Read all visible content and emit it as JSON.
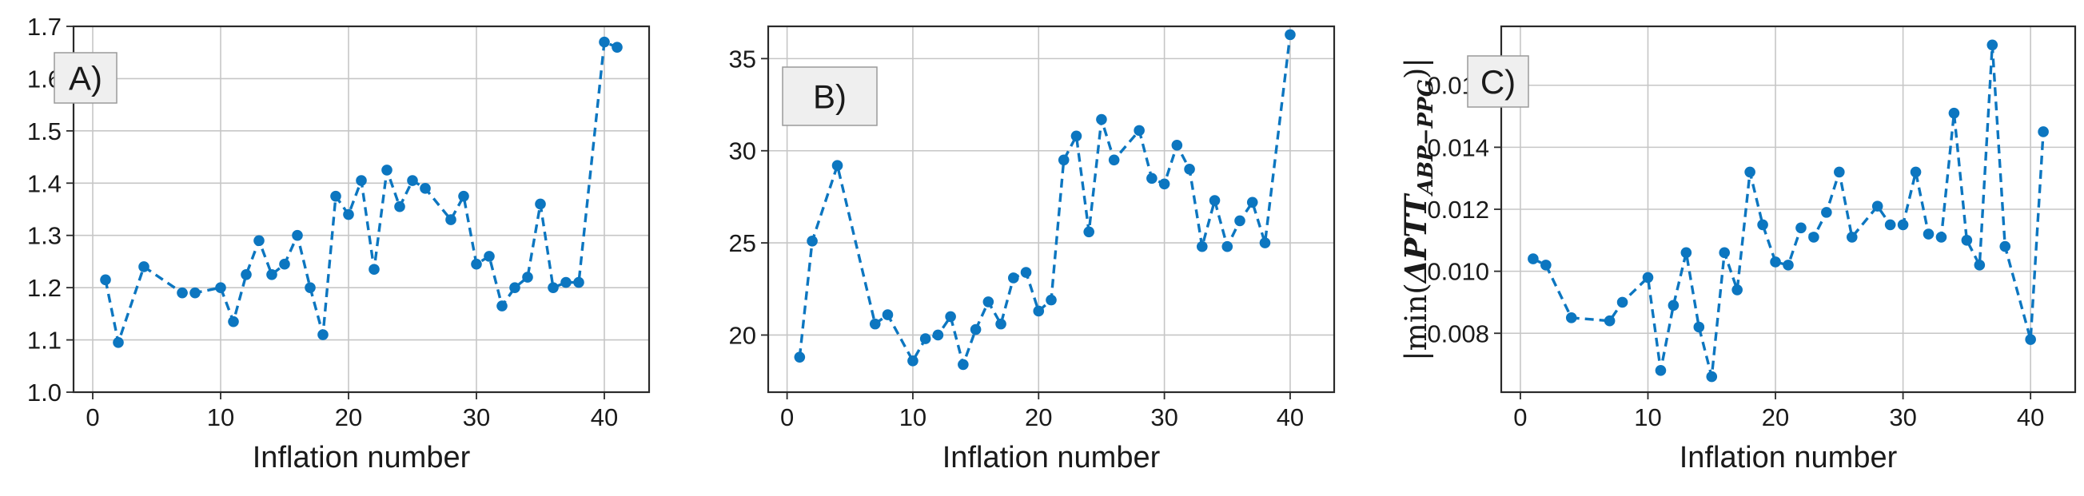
{
  "figure": {
    "background": "#ffffff",
    "accent_color": "#0c76c0",
    "grid_color": "#c6c6c6",
    "spine_color": "#2a2a2a",
    "label_box_fill": "#efefef",
    "label_box_border": "#9a9a9a",
    "xlabel": "Inflation number",
    "x_tick_labels": [
      "0",
      "10",
      "20",
      "30",
      "40"
    ]
  },
  "chart_data": [
    {
      "type": "line",
      "panel_label": "A)",
      "xlabel": "Inflation number",
      "ylabel": "",
      "line_style": "dashed",
      "marker": "circle",
      "grid": true,
      "legend": "none",
      "x": [
        1,
        2,
        4,
        7,
        8,
        10,
        11,
        12,
        13,
        14,
        15,
        16,
        17,
        18,
        19,
        20,
        21,
        22,
        23,
        24,
        25,
        26,
        28,
        29,
        30,
        31,
        32,
        33,
        34,
        35,
        36,
        37,
        38,
        40,
        41
      ],
      "values": [
        1.215,
        1.095,
        1.24,
        1.19,
        1.19,
        1.2,
        1.135,
        1.225,
        1.29,
        1.225,
        1.245,
        1.3,
        1.2,
        1.11,
        1.375,
        1.34,
        1.405,
        1.235,
        1.425,
        1.355,
        1.405,
        1.39,
        1.33,
        1.375,
        1.245,
        1.26,
        1.165,
        1.2,
        1.22,
        1.36,
        1.2,
        1.21,
        1.21,
        1.67,
        1.66
      ],
      "xlim": [
        -1.5,
        43.5
      ],
      "ylim": [
        1.0,
        1.7
      ],
      "x_ticks": [
        0,
        10,
        20,
        30,
        40
      ],
      "y_ticks": [
        1.0,
        1.1,
        1.2,
        1.3,
        1.4,
        1.5,
        1.6,
        1.7
      ],
      "y_tick_labels": [
        "1.0",
        "1.1",
        "1.2",
        "1.3",
        "1.4",
        "1.5",
        "1.6",
        "1.7"
      ]
    },
    {
      "type": "line",
      "panel_label": "B)",
      "xlabel": "Inflation number",
      "ylabel": "",
      "line_style": "dashed",
      "marker": "circle",
      "grid": true,
      "legend": "none",
      "x": [
        1,
        2,
        4,
        7,
        8,
        10,
        11,
        12,
        13,
        14,
        15,
        16,
        17,
        18,
        19,
        20,
        21,
        22,
        23,
        24,
        25,
        26,
        28,
        29,
        30,
        31,
        32,
        33,
        34,
        35,
        36,
        37,
        38,
        40
      ],
      "values": [
        18.8,
        25.1,
        29.2,
        20.6,
        21.1,
        18.6,
        19.8,
        20.0,
        21.0,
        18.4,
        20.3,
        21.8,
        20.6,
        23.1,
        23.4,
        21.3,
        21.9,
        29.5,
        30.8,
        25.6,
        31.7,
        29.5,
        31.1,
        28.5,
        28.2,
        30.3,
        29.0,
        24.8,
        27.3,
        24.8,
        26.2,
        27.2,
        25.0,
        36.3
      ],
      "xlim": [
        -1.5,
        43.5
      ],
      "ylim": [
        16.9,
        36.75
      ],
      "x_ticks": [
        0,
        10,
        20,
        30,
        40
      ],
      "y_ticks": [
        20,
        25,
        30,
        35
      ],
      "y_tick_labels": [
        "20",
        "25",
        "30",
        "35"
      ]
    },
    {
      "type": "line",
      "panel_label": "C)",
      "xlabel": "Inflation number",
      "ylabel": "|min(ΔPTT_ABP−PPG)|",
      "ylabel_parts": {
        "prefix": "|min(",
        "main": "ΔPTT",
        "subscript": "ABP−PPG",
        "suffix": ")|"
      },
      "line_style": "dashed",
      "marker": "circle",
      "grid": true,
      "legend": "none",
      "x": [
        1,
        2,
        4,
        7,
        8,
        10,
        11,
        12,
        13,
        14,
        15,
        16,
        17,
        18,
        19,
        20,
        21,
        22,
        23,
        24,
        25,
        26,
        28,
        29,
        30,
        31,
        32,
        33,
        34,
        35,
        36,
        37,
        38,
        40,
        41
      ],
      "values": [
        0.0104,
        0.0102,
        0.0085,
        0.0084,
        0.009,
        0.0098,
        0.0068,
        0.0089,
        0.0106,
        0.0082,
        0.0066,
        0.0106,
        0.0094,
        0.0132,
        0.0115,
        0.0103,
        0.0102,
        0.0114,
        0.0111,
        0.0119,
        0.0132,
        0.0111,
        0.0121,
        0.0115,
        0.0115,
        0.0132,
        0.0112,
        0.0111,
        0.0151,
        0.011,
        0.0102,
        0.0173,
        0.0108,
        0.0078,
        0.0145
      ],
      "xlim": [
        -1.5,
        43.5
      ],
      "ylim": [
        0.0061,
        0.0179
      ],
      "x_ticks": [
        0,
        10,
        20,
        30,
        40
      ],
      "y_ticks": [
        0.008,
        0.01,
        0.012,
        0.014,
        0.016
      ],
      "y_tick_labels": [
        "0.008",
        "0.010",
        "0.012",
        "0.014",
        "0.016"
      ]
    }
  ]
}
